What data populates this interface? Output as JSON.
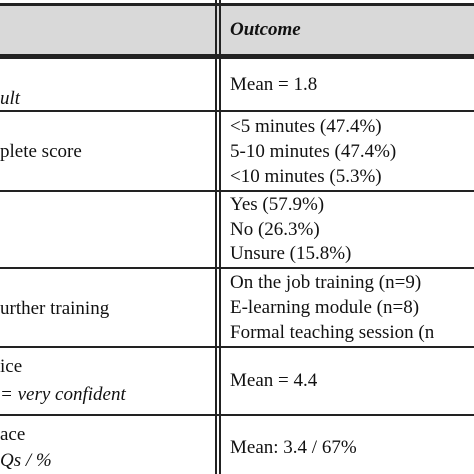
{
  "header": {
    "outcome_label": "Outcome"
  },
  "rows": [
    {
      "left": [
        "ult"
      ],
      "right": [
        "Mean = 1.8"
      ]
    },
    {
      "left": [
        "plete score"
      ],
      "right": [
        "<5 minutes (47.4%)",
        "5-10 minutes (47.4%)",
        "<10 minutes (5.3%)"
      ]
    },
    {
      "left": [],
      "right": [
        "Yes (57.9%)",
        "No (26.3%)",
        "Unsure (15.8%)"
      ]
    },
    {
      "left": [
        "urther training"
      ],
      "right": [
        "On the job training (n=9)",
        "E-learning module (n=8)",
        "Formal teaching session (n"
      ]
    },
    {
      "left": [
        "ice",
        "= very confident"
      ],
      "right": [
        "Mean = 4.4"
      ]
    },
    {
      "left": [
        "ace",
        "Qs / %"
      ],
      "right": [
        "Mean: 3.4 / 67%"
      ]
    }
  ]
}
